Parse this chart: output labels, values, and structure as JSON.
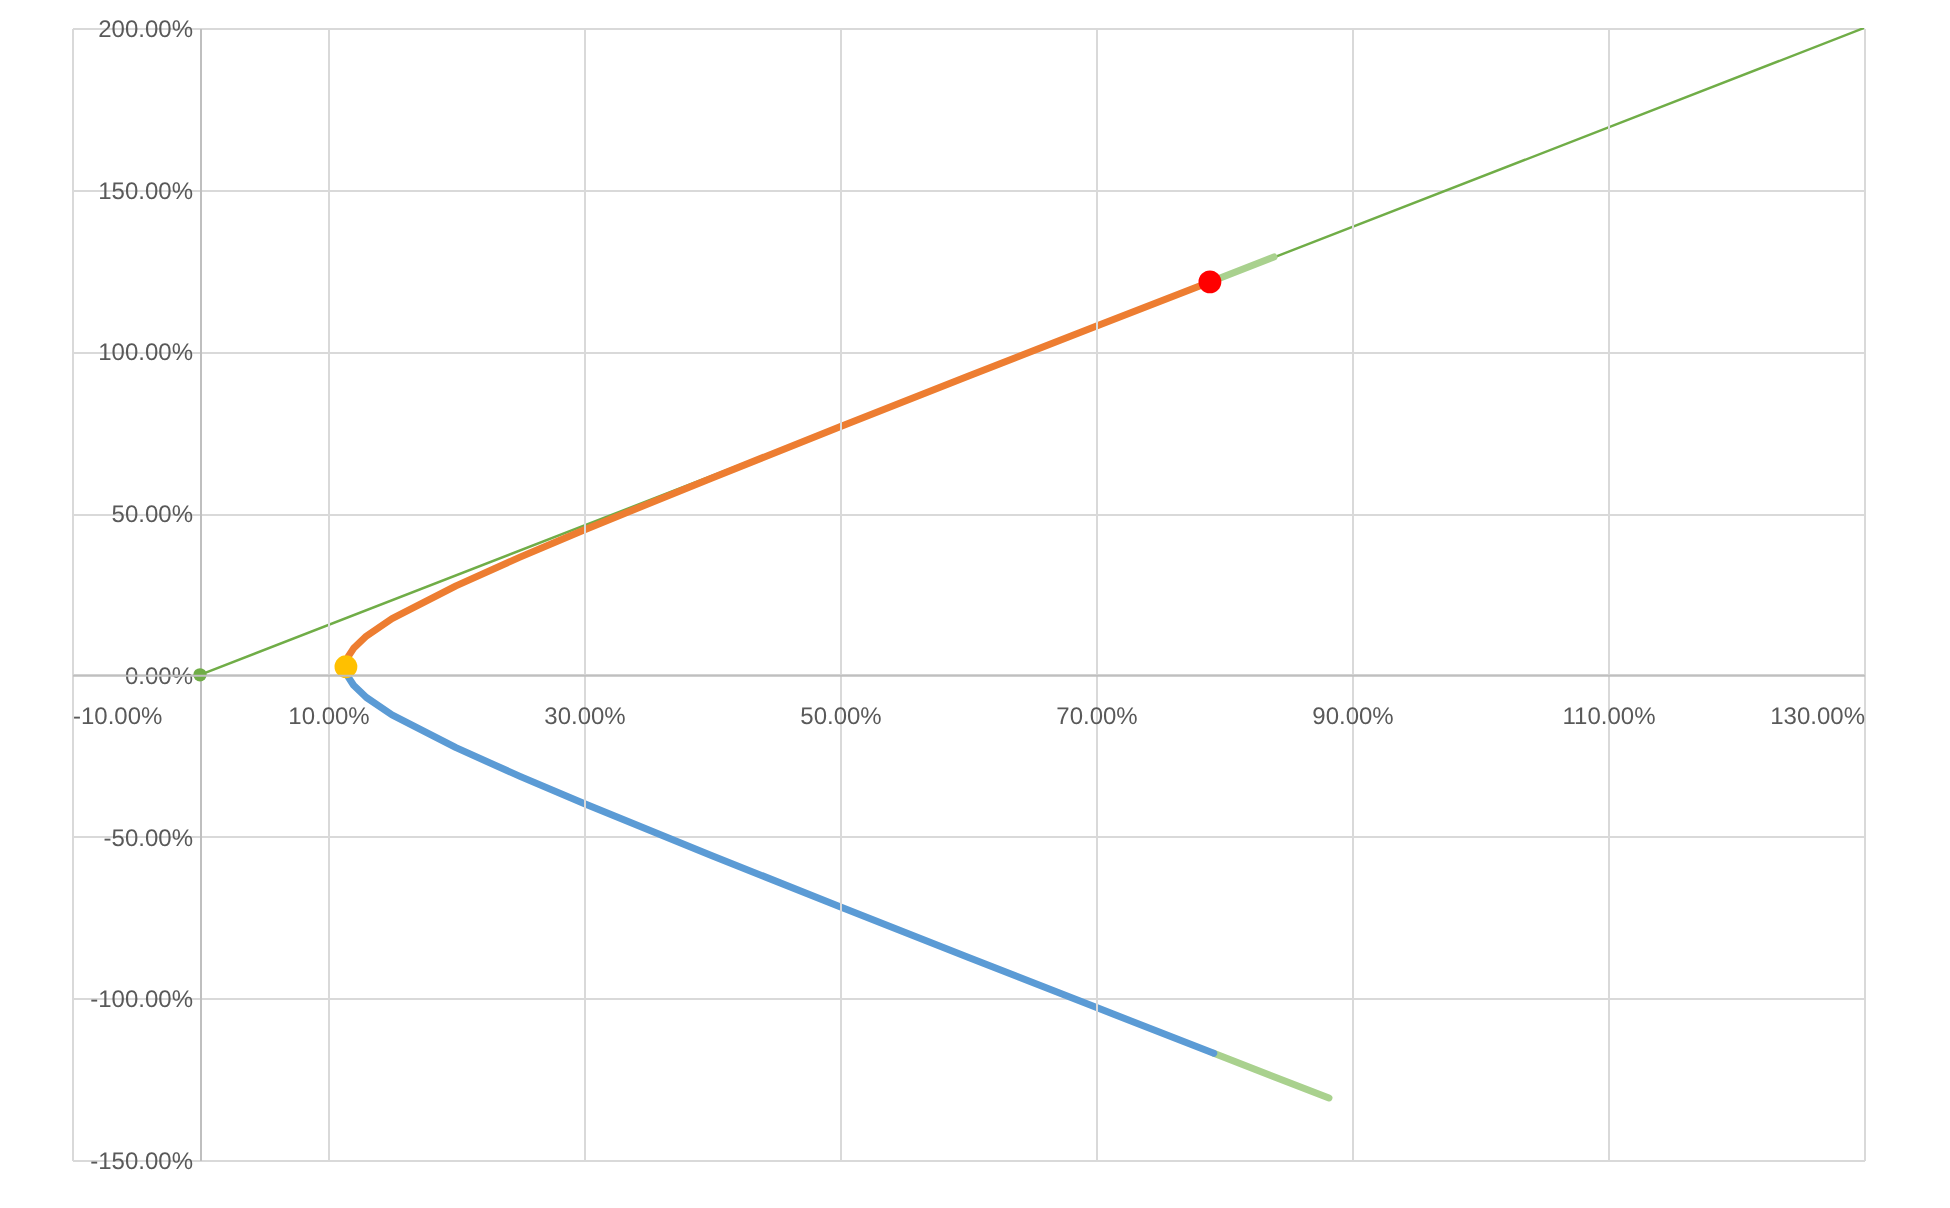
{
  "chart_data": {
    "type": "line",
    "xlim": [
      -10,
      130
    ],
    "ylim": [
      -150,
      200
    ],
    "xticks": [
      {
        "value": -10,
        "label": "-10.00%"
      },
      {
        "value": 10,
        "label": "10.00%"
      },
      {
        "value": 30,
        "label": "30.00%"
      },
      {
        "value": 50,
        "label": "50.00%"
      },
      {
        "value": 70,
        "label": "70.00%"
      },
      {
        "value": 90,
        "label": "90.00%"
      },
      {
        "value": 110,
        "label": "110.00%"
      },
      {
        "value": 130,
        "label": "130.00%"
      }
    ],
    "yticks": [
      {
        "value": -150,
        "label": "-150.00%"
      },
      {
        "value": -100,
        "label": "-100.00%"
      },
      {
        "value": -50,
        "label": "-50.00%"
      },
      {
        "value": 0,
        "label": "0.00%"
      },
      {
        "value": 50,
        "label": "50.00%"
      },
      {
        "value": 100,
        "label": "100.00%"
      },
      {
        "value": 150,
        "label": "150.00%"
      },
      {
        "value": 200,
        "label": "200.00%"
      }
    ],
    "grid": true,
    "line_style": "solid",
    "series": [
      {
        "type": "line",
        "color": "#70ad47",
        "x": [
          0,
          130
        ],
        "values": [
          0,
          200
        ]
      },
      {
        "type": "line",
        "color": "#a9d18e",
        "x": [
          78.9,
          83.9
        ],
        "values": [
          121.5,
          129.2
        ]
      },
      {
        "type": "line",
        "color": "#a9d18e",
        "x": [
          79.2,
          84,
          88.2
        ],
        "values": [
          -117.0,
          -124.4,
          -130.8
        ]
      },
      {
        "type": "line",
        "color": "#ed7d31",
        "x": [
          11.4,
          11.6,
          12,
          13,
          15,
          20,
          25,
          30,
          40,
          50,
          60,
          70,
          78.9
        ],
        "values": [
          2.5,
          5.8,
          8.2,
          12.0,
          17.4,
          27.5,
          36.4,
          44.8,
          60.9,
          76.7,
          92.3,
          107.8,
          121.5
        ]
      },
      {
        "type": "line",
        "color": "#5b9bd5",
        "x": [
          11.4,
          11.6,
          12,
          13,
          15,
          20,
          25,
          30,
          40,
          50,
          60,
          70,
          79.2
        ],
        "values": [
          2.5,
          -0.8,
          -3.2,
          -7.0,
          -12.4,
          -22.5,
          -31.4,
          -39.8,
          -55.9,
          -71.7,
          -87.3,
          -102.8,
          -117.0
        ]
      },
      {
        "type": "scatter",
        "color": "#70ad47",
        "marker": "circle",
        "x": [
          0
        ],
        "values": [
          0
        ]
      },
      {
        "type": "scatter",
        "color": "#ffc000",
        "marker": "circle",
        "x": [
          11.4
        ],
        "values": [
          2.5
        ]
      },
      {
        "type": "scatter",
        "color": "#ff0000",
        "marker": "circle",
        "x": [
          78.9
        ],
        "values": [
          121.5
        ]
      }
    ]
  }
}
